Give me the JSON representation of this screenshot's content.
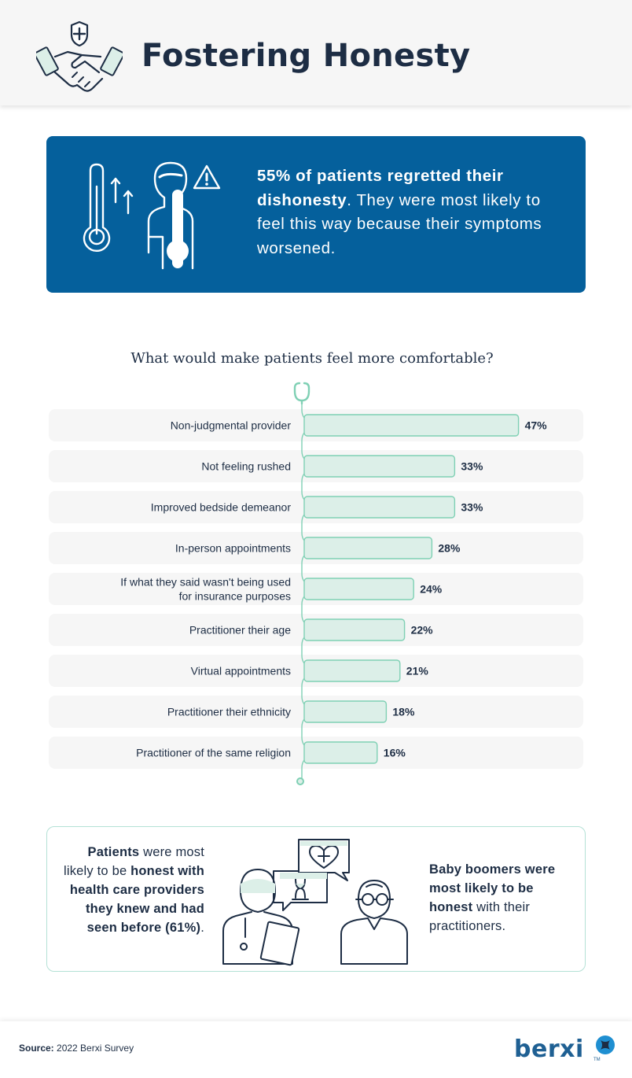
{
  "header": {
    "title": "Fostering Honesty"
  },
  "stat_card": {
    "bold": "55% of patients regretted their dishonesty",
    "rest": ". They were most likely to feel this way because their symptoms worsened."
  },
  "bottom_card": {
    "left": {
      "b1": "Patients",
      "t1": " were most likely to be ",
      "b2": "honest with health care providers they knew and had seen before (61%)",
      "t2": "."
    },
    "right": {
      "b1": "Baby boomers were most likely to be honest",
      "t1": " with their practitioners."
    }
  },
  "footer": {
    "source_label": "Source:",
    "source_text": " 2022 Berxi Survey",
    "brand": "berxi",
    "tm": "TM"
  },
  "colors": {
    "navy": "#1d2d44",
    "blue": "#05609c",
    "mint": "#7fd0b4",
    "mint_fill": "#dcefe8",
    "row_bg": "#f6f6f6"
  },
  "chart_data": {
    "type": "bar",
    "orientation": "horizontal",
    "title": "What would make patients feel more comfortable?",
    "unit": "%",
    "categories": [
      "Non-judgmental provider",
      "Not feeling rushed",
      "Improved bedside demeanor",
      "In-person appointments",
      "If what they said wasn't being used for insurance purposes",
      "Practitioner their age",
      "Virtual appointments",
      "Practitioner their ethnicity",
      "Practitioner of the same religion"
    ],
    "values": [
      47,
      33,
      33,
      28,
      24,
      22,
      21,
      18,
      16
    ],
    "value_labels": [
      "47%",
      "33%",
      "33%",
      "28%",
      "24%",
      "22%",
      "21%",
      "18%",
      "16%"
    ],
    "xlim": [
      0,
      50
    ],
    "xlabel": "",
    "ylabel": ""
  }
}
